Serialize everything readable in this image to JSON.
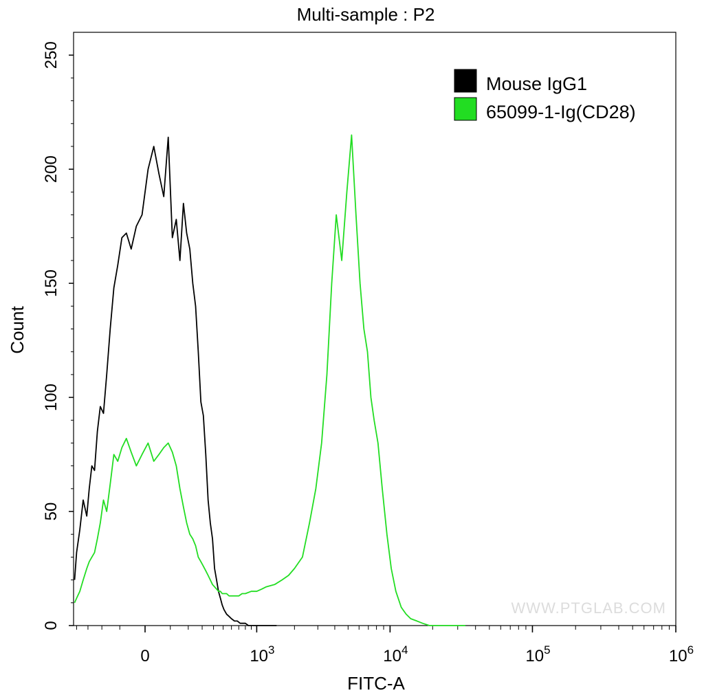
{
  "chart_data": {
    "type": "line",
    "title": "Multi-sample : P2",
    "xlabel": "FITC-A",
    "ylabel": "Count",
    "ylim": [
      0,
      260
    ],
    "y_ticks": [
      0,
      50,
      100,
      150,
      200,
      250
    ],
    "x_scale": "biexponential",
    "x_ticks": [
      {
        "value": 0,
        "base": "0",
        "exp": ""
      },
      {
        "value": 1000,
        "base": "10",
        "exp": "3"
      },
      {
        "value": 10000,
        "base": "10",
        "exp": "4"
      },
      {
        "value": 100000,
        "base": "10",
        "exp": "5"
      },
      {
        "value": 1000000,
        "base": "10",
        "exp": "6"
      }
    ],
    "grid": false,
    "legend_position": "top-right",
    "series": [
      {
        "name": "Mouse IgG1",
        "color": "#000000",
        "x": [
          -420,
          -400,
          -370,
          -340,
          -310,
          -290,
          -270,
          -250,
          -230,
          -210,
          -190,
          -170,
          -150,
          -130,
          -110,
          -90,
          -70,
          -50,
          -30,
          -10,
          10,
          30,
          50,
          70,
          90,
          110,
          130,
          150,
          170,
          190,
          210,
          230,
          250,
          270,
          290,
          310,
          330,
          350,
          370,
          390,
          410,
          430,
          450,
          470,
          490,
          510,
          540,
          570,
          600,
          640,
          680,
          720,
          760,
          800,
          850,
          900,
          950,
          1000,
          1080,
          1150,
          1250,
          1350,
          1450
        ],
        "y": [
          20,
          32,
          42,
          55,
          48,
          60,
          70,
          68,
          85,
          96,
          93,
          110,
          130,
          148,
          158,
          170,
          172,
          165,
          175,
          180,
          200,
          210,
          198,
          188,
          214,
          170,
          178,
          160,
          185,
          172,
          165,
          150,
          140,
          120,
          98,
          92,
          75,
          55,
          45,
          38,
          25,
          20,
          15,
          12,
          9,
          7,
          5,
          4,
          3,
          2,
          2,
          1,
          1,
          1,
          0,
          0,
          0,
          0,
          0,
          0,
          0,
          0,
          0
        ]
      },
      {
        "name": "65099-1-Ig(CD28)",
        "color": "#22dd22",
        "x": [
          -420,
          -400,
          -370,
          -340,
          -310,
          -290,
          -270,
          -250,
          -230,
          -210,
          -190,
          -170,
          -150,
          -130,
          -110,
          -90,
          -70,
          -50,
          -30,
          -10,
          10,
          30,
          50,
          70,
          90,
          110,
          130,
          150,
          170,
          190,
          210,
          230,
          250,
          270,
          290,
          310,
          330,
          350,
          370,
          390,
          410,
          430,
          450,
          470,
          490,
          510,
          540,
          570,
          600,
          650,
          700,
          750,
          800,
          900,
          1000,
          1100,
          1200,
          1400,
          1600,
          1800,
          2000,
          2300,
          2600,
          2900,
          3200,
          3500,
          3800,
          4100,
          4500,
          4900,
          5300,
          5700,
          6100,
          6500,
          6900,
          7300,
          7700,
          8200,
          8800,
          9500,
          10200,
          11000,
          12000,
          13000,
          14000,
          15500,
          17000,
          19000,
          21000,
          23000,
          25000,
          28000,
          31000,
          34000
        ],
        "y": [
          10,
          12,
          15,
          20,
          25,
          28,
          30,
          32,
          38,
          45,
          55,
          50,
          62,
          75,
          72,
          78,
          82,
          76,
          70,
          75,
          80,
          72,
          75,
          78,
          80,
          76,
          70,
          60,
          52,
          45,
          40,
          38,
          35,
          30,
          28,
          26,
          24,
          22,
          20,
          18,
          17,
          16,
          15,
          15,
          14,
          14,
          14,
          13,
          13,
          13,
          13,
          14,
          14,
          15,
          15,
          16,
          17,
          18,
          20,
          22,
          25,
          30,
          45,
          60,
          80,
          110,
          150,
          180,
          160,
          190,
          215,
          180,
          150,
          130,
          120,
          100,
          90,
          80,
          60,
          40,
          25,
          15,
          8,
          5,
          3,
          2,
          1,
          0,
          0,
          0,
          0,
          0,
          0,
          0
        ]
      }
    ]
  },
  "watermark": "WWW.PTGLAB.COM"
}
